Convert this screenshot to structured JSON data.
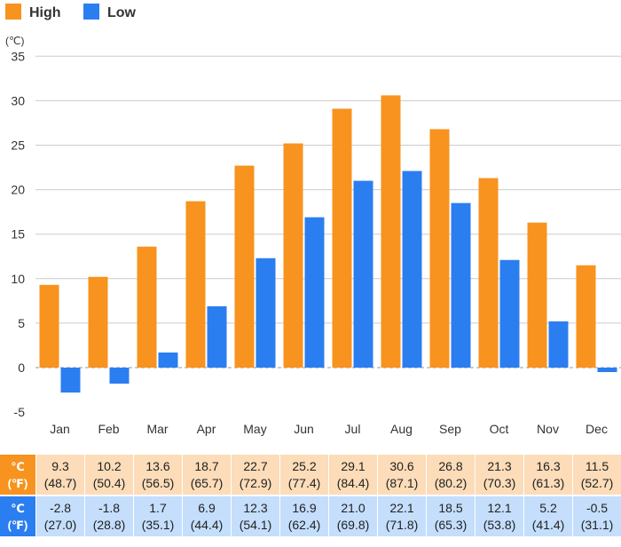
{
  "chart_data": {
    "type": "bar",
    "unit_label": "(℃)",
    "categories": [
      "Jan",
      "Feb",
      "Mar",
      "Apr",
      "May",
      "Jun",
      "Jul",
      "Aug",
      "Sep",
      "Oct",
      "Nov",
      "Dec"
    ],
    "series": [
      {
        "name": "High",
        "color": "#f7931e",
        "values": [
          9.3,
          10.2,
          13.6,
          18.7,
          22.7,
          25.2,
          29.1,
          30.6,
          26.8,
          21.3,
          16.3,
          11.5
        ]
      },
      {
        "name": "Low",
        "color": "#2b7ef0",
        "values": [
          -2.8,
          -1.8,
          1.7,
          6.9,
          12.3,
          16.9,
          21.0,
          22.1,
          18.5,
          12.1,
          5.2,
          -0.5
        ]
      }
    ],
    "yticks": [
      -5,
      0,
      5,
      10,
      15,
      20,
      25,
      30,
      35
    ],
    "ylim": [
      -5,
      35
    ],
    "grid": true,
    "legend_position": "top-left"
  },
  "table": {
    "high_unit_c": "℃",
    "high_unit_f": "(℉)",
    "low_unit_c": "℃",
    "low_unit_f": "(℉)",
    "high": [
      {
        "c": "9.3",
        "f": "(48.7)"
      },
      {
        "c": "10.2",
        "f": "(50.4)"
      },
      {
        "c": "13.6",
        "f": "(56.5)"
      },
      {
        "c": "18.7",
        "f": "(65.7)"
      },
      {
        "c": "22.7",
        "f": "(72.9)"
      },
      {
        "c": "25.2",
        "f": "(77.4)"
      },
      {
        "c": "29.1",
        "f": "(84.4)"
      },
      {
        "c": "30.6",
        "f": "(87.1)"
      },
      {
        "c": "26.8",
        "f": "(80.2)"
      },
      {
        "c": "21.3",
        "f": "(70.3)"
      },
      {
        "c": "16.3",
        "f": "(61.3)"
      },
      {
        "c": "11.5",
        "f": "(52.7)"
      }
    ],
    "low": [
      {
        "c": "-2.8",
        "f": "(27.0)"
      },
      {
        "c": "-1.8",
        "f": "(28.8)"
      },
      {
        "c": "1.7",
        "f": "(35.1)"
      },
      {
        "c": "6.9",
        "f": "(44.4)"
      },
      {
        "c": "12.3",
        "f": "(54.1)"
      },
      {
        "c": "16.9",
        "f": "(62.4)"
      },
      {
        "c": "21.0",
        "f": "(69.8)"
      },
      {
        "c": "22.1",
        "f": "(71.8)"
      },
      {
        "c": "18.5",
        "f": "(65.3)"
      },
      {
        "c": "12.1",
        "f": "(53.8)"
      },
      {
        "c": "5.2",
        "f": "(41.4)"
      },
      {
        "c": "-0.5",
        "f": "(31.1)"
      }
    ]
  }
}
